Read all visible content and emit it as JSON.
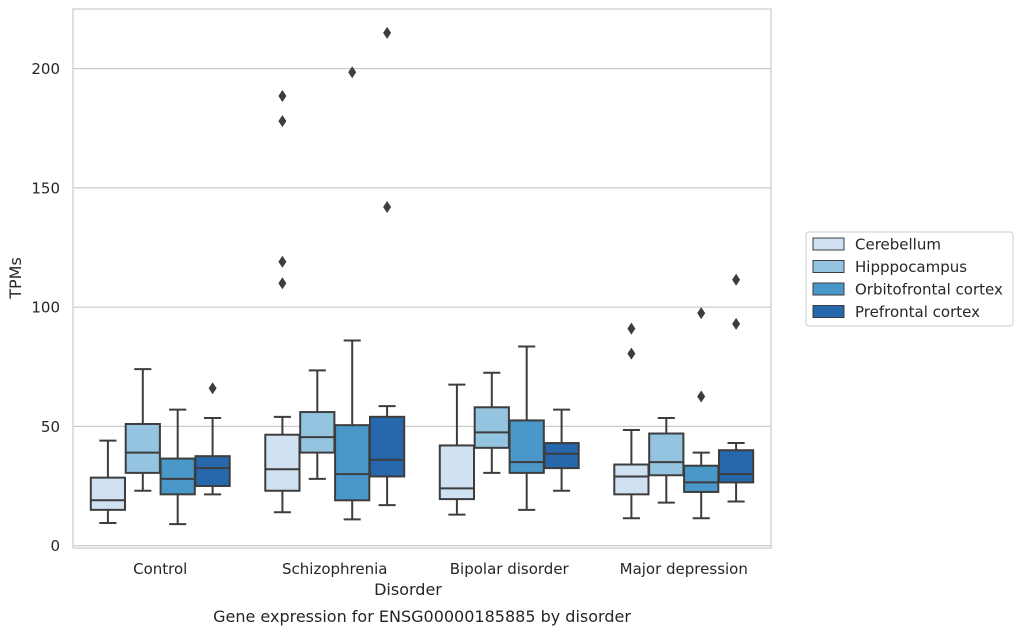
{
  "chart_data": {
    "type": "boxplot",
    "caption": "Gene expression for ENSG00000185885 by disorder",
    "xlabel": "Disorder",
    "ylabel": "TPMs",
    "ylim": [
      -1,
      225
    ],
    "yticks": [
      0,
      50,
      100,
      150,
      200
    ],
    "grid": true,
    "legend_position": "right",
    "categories": [
      "Control",
      "Schizophrenia",
      "Bipolar disorder",
      "Major depression"
    ],
    "series": [
      {
        "name": "Cerebellum",
        "color": "#d0e1f2",
        "boxes": [
          {
            "whislo": 9.5,
            "q1": 15,
            "med": 19,
            "q3": 28.5,
            "whishi": 44,
            "fliers": []
          },
          {
            "whislo": 14,
            "q1": 23,
            "med": 32,
            "q3": 46.5,
            "whishi": 54,
            "fliers": [
              110,
              119,
              178,
              188.5
            ]
          },
          {
            "whislo": 13,
            "q1": 19.5,
            "med": 24,
            "q3": 42,
            "whishi": 67.5,
            "fliers": []
          },
          {
            "whislo": 11.5,
            "q1": 21.5,
            "med": 29,
            "q3": 34,
            "whishi": 48.5,
            "fliers": [
              80.5,
              91
            ]
          }
        ]
      },
      {
        "name": "Hipppocampus",
        "color": "#94c4df",
        "boxes": [
          {
            "whislo": 23,
            "q1": 30.5,
            "med": 39,
            "q3": 51,
            "whishi": 74,
            "fliers": []
          },
          {
            "whislo": 28,
            "q1": 39,
            "med": 45.5,
            "q3": 56,
            "whishi": 73.5,
            "fliers": []
          },
          {
            "whislo": 30.5,
            "q1": 41,
            "med": 47.5,
            "q3": 58,
            "whishi": 72.5,
            "fliers": []
          },
          {
            "whislo": 18,
            "q1": 29.5,
            "med": 35,
            "q3": 47,
            "whishi": 53.5,
            "fliers": []
          }
        ]
      },
      {
        "name": "Orbitofrontal cortex",
        "color": "#4a98c9",
        "boxes": [
          {
            "whislo": 9,
            "q1": 21.5,
            "med": 28,
            "q3": 36.5,
            "whishi": 57,
            "fliers": []
          },
          {
            "whislo": 11,
            "q1": 19,
            "med": 30,
            "q3": 50.5,
            "whishi": 86,
            "fliers": [
              198.5
            ]
          },
          {
            "whislo": 15,
            "q1": 30.5,
            "med": 35,
            "q3": 52.5,
            "whishi": 83.5,
            "fliers": []
          },
          {
            "whislo": 11.5,
            "q1": 22.5,
            "med": 26.5,
            "q3": 33.5,
            "whishi": 39,
            "fliers": [
              62.5,
              97.5
            ]
          }
        ]
      },
      {
        "name": "Prefrontal cortex",
        "color": "#2767ac",
        "boxes": [
          {
            "whislo": 21.5,
            "q1": 25,
            "med": 32.5,
            "q3": 37.5,
            "whishi": 53.5,
            "fliers": [
              66
            ]
          },
          {
            "whislo": 17,
            "q1": 29,
            "med": 36,
            "q3": 54,
            "whishi": 58.5,
            "fliers": [
              142,
              215
            ]
          },
          {
            "whislo": 23,
            "q1": 32.5,
            "med": 38.5,
            "q3": 43,
            "whishi": 57,
            "fliers": []
          },
          {
            "whislo": 18.5,
            "q1": 26.5,
            "med": 30,
            "q3": 40,
            "whishi": 43,
            "fliers": [
              93,
              111.5
            ]
          }
        ]
      }
    ]
  }
}
